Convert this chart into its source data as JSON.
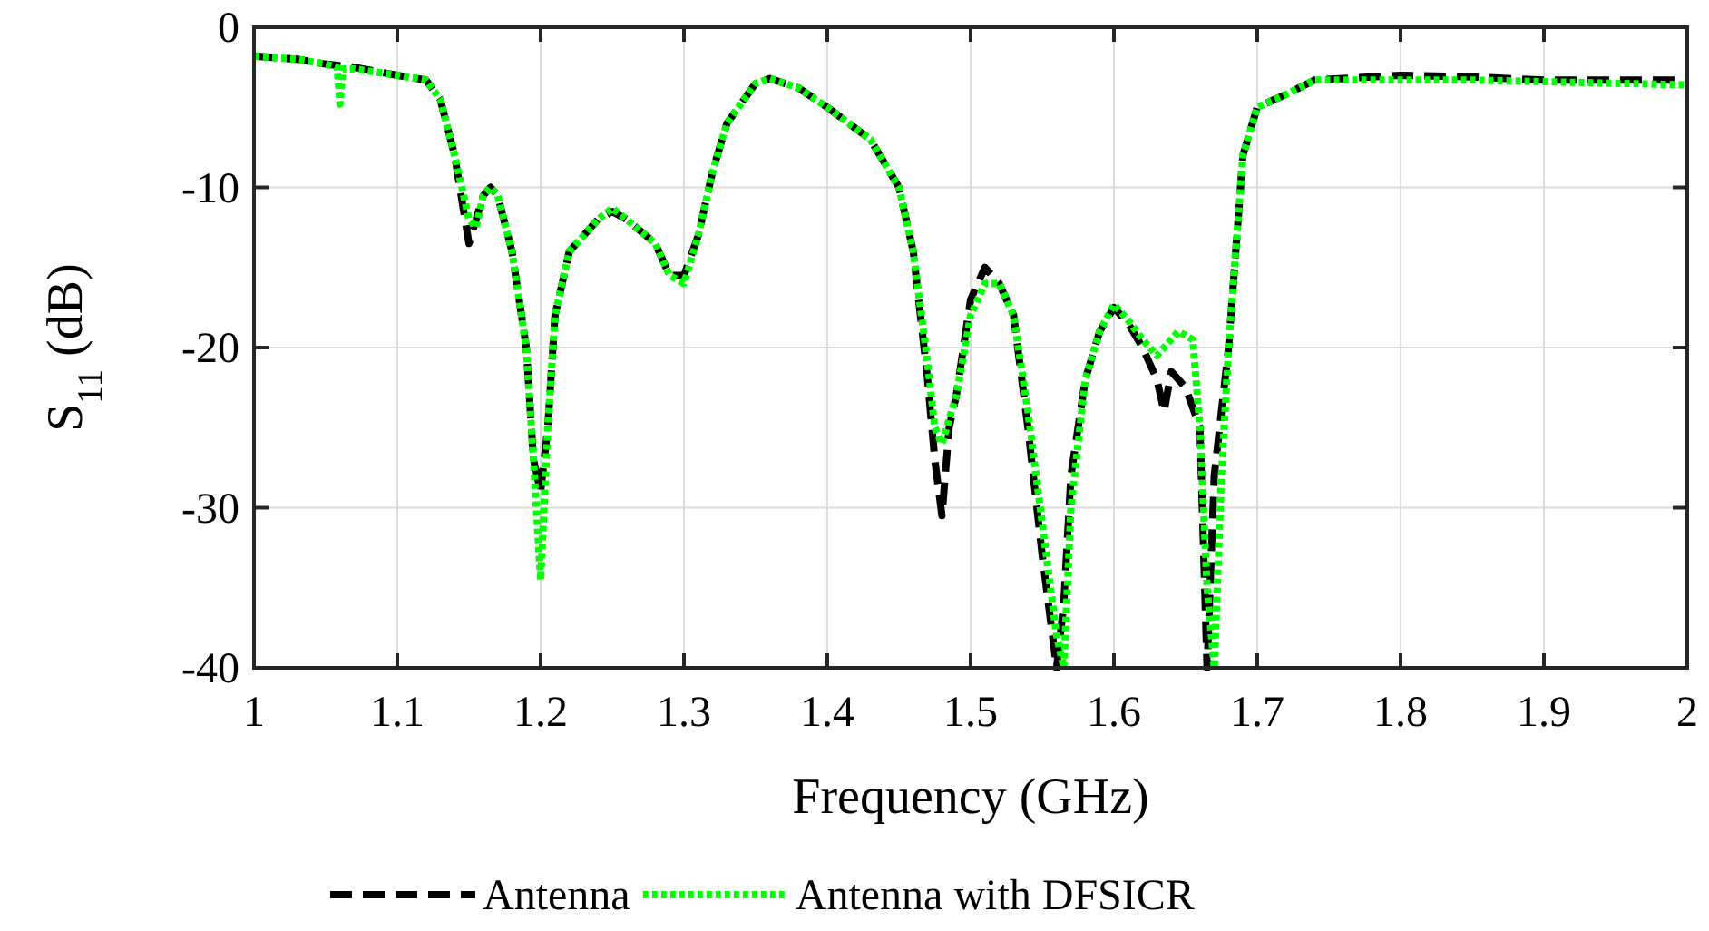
{
  "chart_data": {
    "type": "line",
    "xlabel": "Frequency (GHz)",
    "ylabel": "S$_{11}$ (dB)",
    "xlim": [
      1,
      2
    ],
    "ylim": [
      -40,
      0
    ],
    "xticks": [
      1,
      {
        "value": 1.1,
        "label": "1.1"
      },
      {
        "value": 1.2,
        "label": "1.2"
      },
      {
        "value": 1.3,
        "label": "1.3"
      },
      {
        "value": 1.4,
        "label": "1.4"
      },
      {
        "value": 1.5,
        "label": "1.5"
      },
      {
        "value": 1.6,
        "label": "1.6"
      },
      {
        "value": 1.7,
        "label": "1.7"
      },
      {
        "value": 1.8,
        "label": "1.8"
      },
      {
        "value": 1.9,
        "label": "1.9"
      },
      2
    ],
    "yticks": [
      -40,
      -30,
      -20,
      -10,
      0
    ],
    "grid": true,
    "legend": "bottom",
    "series": [
      {
        "name": "Antenna",
        "color": "#000000",
        "line_style": "dashed",
        "x": [
          1,
          1.03,
          1.05,
          1.07,
          1.1,
          1.12,
          1.13,
          1.14,
          1.15,
          1.155,
          1.16,
          1.165,
          1.17,
          1.18,
          1.19,
          1.195,
          1.2,
          1.205,
          1.21,
          1.22,
          1.24,
          1.25,
          1.26,
          1.28,
          1.29,
          1.3,
          1.31,
          1.32,
          1.33,
          1.35,
          1.36,
          1.37,
          1.38,
          1.4,
          1.43,
          1.45,
          1.46,
          1.47,
          1.475,
          1.48,
          1.485,
          1.49,
          1.5,
          1.51,
          1.52,
          1.53,
          1.54,
          1.55,
          1.56,
          1.565,
          1.57,
          1.58,
          1.59,
          1.6,
          1.61,
          1.62,
          1.63,
          1.635,
          1.64,
          1.65,
          1.66,
          1.665,
          1.67,
          1.68,
          1.69,
          1.7,
          1.72,
          1.74,
          1.8,
          1.85,
          1.9,
          1.95,
          2
        ],
        "values": [
          -1.8,
          -2,
          -2.3,
          -2.5,
          -3,
          -3.3,
          -4.5,
          -8,
          -13.5,
          -12,
          -10.5,
          -10,
          -10.5,
          -14,
          -20,
          -27,
          -29,
          -25,
          -18,
          -14,
          -12,
          -11.5,
          -12,
          -13.5,
          -15.5,
          -15.5,
          -13,
          -9,
          -6,
          -3.5,
          -3.2,
          -3.5,
          -3.8,
          -5,
          -7,
          -10,
          -14,
          -22,
          -27,
          -30.5,
          -25,
          -23,
          -17,
          -15,
          -16,
          -18,
          -25,
          -33,
          -40,
          -36,
          -28,
          -22,
          -19,
          -17.5,
          -18.5,
          -20,
          -22,
          -24,
          -21.5,
          -22.5,
          -25,
          -40,
          -28,
          -20,
          -8,
          -5,
          -4.2,
          -3.3,
          -3,
          -3.1,
          -3.3,
          -3.3,
          -3.3
        ]
      },
      {
        "name": "Antenna with DFSICR",
        "color": "#00ff00",
        "line_style": "dotted",
        "x": [
          1,
          1.03,
          1.05,
          1.058,
          1.06,
          1.062,
          1.07,
          1.1,
          1.12,
          1.13,
          1.14,
          1.15,
          1.155,
          1.16,
          1.165,
          1.17,
          1.18,
          1.19,
          1.195,
          1.2,
          1.205,
          1.21,
          1.22,
          1.24,
          1.25,
          1.26,
          1.28,
          1.29,
          1.3,
          1.31,
          1.32,
          1.33,
          1.35,
          1.36,
          1.37,
          1.38,
          1.4,
          1.43,
          1.45,
          1.46,
          1.47,
          1.475,
          1.48,
          1.49,
          1.5,
          1.51,
          1.52,
          1.53,
          1.54,
          1.55,
          1.56,
          1.565,
          1.57,
          1.58,
          1.59,
          1.6,
          1.61,
          1.62,
          1.63,
          1.645,
          1.655,
          1.66,
          1.665,
          1.67,
          1.675,
          1.68,
          1.69,
          1.7,
          1.72,
          1.74,
          1.8,
          1.85,
          1.9,
          1.95,
          2
        ],
        "values": [
          -1.8,
          -2,
          -2.3,
          -2.5,
          -4.8,
          -2.6,
          -2.6,
          -3,
          -3.3,
          -4.5,
          -8,
          -12,
          -12.5,
          -10.5,
          -10,
          -10.5,
          -14,
          -20,
          -27,
          -34.5,
          -25,
          -18,
          -14,
          -12,
          -11.3,
          -12,
          -13.5,
          -15.5,
          -16,
          -13,
          -9,
          -6,
          -3.5,
          -3.2,
          -3.5,
          -3.8,
          -5,
          -7,
          -10,
          -14,
          -21,
          -25,
          -26,
          -23,
          -18,
          -16,
          -16,
          -18,
          -24,
          -31,
          -38,
          -40,
          -30,
          -22,
          -19,
          -17.3,
          -18.3,
          -19.5,
          -20.5,
          -19,
          -19.5,
          -25,
          -35,
          -40,
          -28,
          -20,
          -8,
          -5,
          -4.2,
          -3.3,
          -3.3,
          -3.3,
          -3.4,
          -3.5,
          -3.6
        ]
      }
    ]
  }
}
